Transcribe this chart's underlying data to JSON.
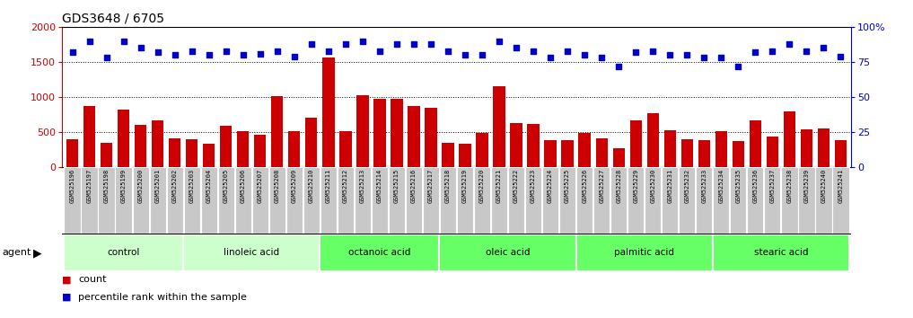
{
  "title": "GDS3648 / 6705",
  "samples": [
    "GSM525196",
    "GSM525197",
    "GSM525198",
    "GSM525199",
    "GSM525200",
    "GSM525201",
    "GSM525202",
    "GSM525203",
    "GSM525204",
    "GSM525205",
    "GSM525206",
    "GSM525207",
    "GSM525208",
    "GSM525209",
    "GSM525210",
    "GSM525211",
    "GSM525212",
    "GSM525213",
    "GSM525214",
    "GSM525215",
    "GSM525216",
    "GSM525217",
    "GSM525218",
    "GSM525219",
    "GSM525220",
    "GSM525221",
    "GSM525222",
    "GSM525223",
    "GSM525224",
    "GSM525225",
    "GSM525226",
    "GSM525227",
    "GSM525228",
    "GSM525229",
    "GSM525230",
    "GSM525231",
    "GSM525232",
    "GSM525233",
    "GSM525234",
    "GSM525235",
    "GSM525236",
    "GSM525237",
    "GSM525238",
    "GSM525239",
    "GSM525240",
    "GSM525241"
  ],
  "counts": [
    400,
    870,
    340,
    820,
    600,
    660,
    415,
    390,
    330,
    590,
    510,
    460,
    1010,
    510,
    710,
    1560,
    510,
    1030,
    975,
    980,
    870,
    840,
    350,
    330,
    480,
    1150,
    630,
    620,
    380,
    380,
    490,
    410,
    270,
    670,
    770,
    530,
    390,
    380,
    510,
    370,
    670,
    430,
    790,
    540,
    550,
    380
  ],
  "percentile_ranks": [
    82,
    90,
    78,
    90,
    85,
    82,
    80,
    83,
    80,
    83,
    80,
    81,
    83,
    79,
    88,
    83,
    88,
    90,
    83,
    88,
    88,
    88,
    83,
    80,
    80,
    90,
    85,
    83,
    78,
    83,
    80,
    78,
    72,
    82,
    83,
    80,
    80,
    78,
    78,
    72,
    82,
    83,
    88,
    83,
    85,
    79
  ],
  "groups": [
    {
      "label": "control",
      "start": 0,
      "end": 6,
      "color": "#ccffcc"
    },
    {
      "label": "linoleic acid",
      "start": 7,
      "end": 14,
      "color": "#ccffcc"
    },
    {
      "label": "octanoic acid",
      "start": 15,
      "end": 21,
      "color": "#66ff66"
    },
    {
      "label": "oleic acid",
      "start": 22,
      "end": 29,
      "color": "#66ff66"
    },
    {
      "label": "palmitic acid",
      "start": 30,
      "end": 37,
      "color": "#66ff66"
    },
    {
      "label": "stearic acid",
      "start": 38,
      "end": 45,
      "color": "#66ff66"
    }
  ],
  "bar_color": "#cc0000",
  "dot_color": "#0000cc",
  "bar_ylim": [
    0,
    2000
  ],
  "bar_yticks": [
    0,
    500,
    1000,
    1500,
    2000
  ],
  "pct_ylim": [
    0,
    100
  ],
  "pct_yticks": [
    0,
    25,
    50,
    75,
    100
  ],
  "bg_color": "#ffffff",
  "tick_bg_color": "#c8c8c8",
  "group_border_color": "#ffffff",
  "legend_count_color": "#cc0000",
  "legend_pct_color": "#0000cc"
}
